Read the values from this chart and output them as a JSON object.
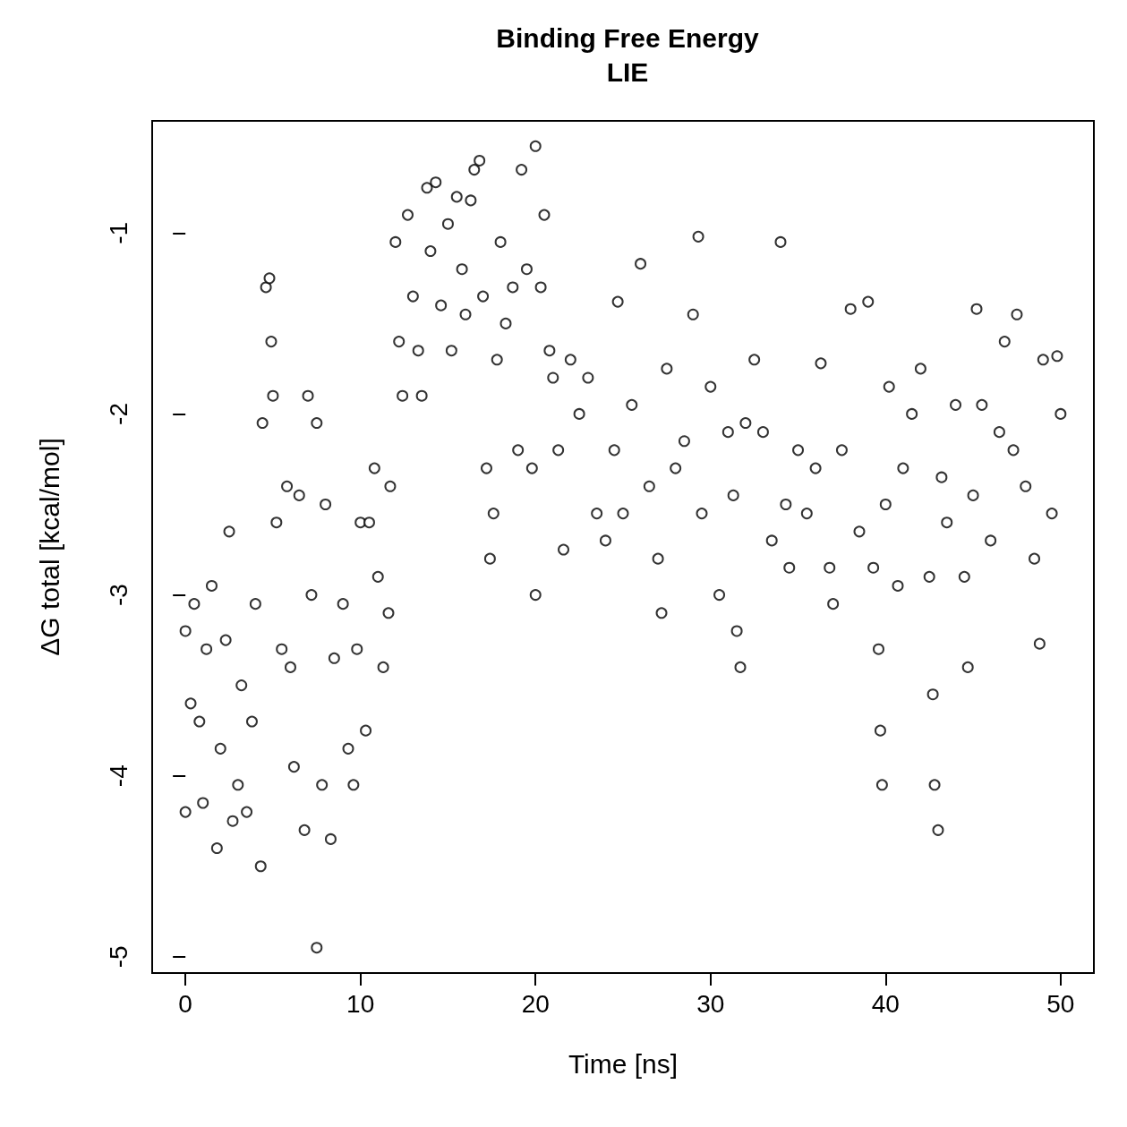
{
  "chart_data": {
    "type": "scatter",
    "title": "Binding Free Energy",
    "subtitle": "LIE",
    "xlabel": "Time [ns]",
    "ylabel": "ΔG total [kcal/mol]",
    "xlim": [
      -1.9,
      51.9
    ],
    "ylim": [
      -5.09,
      -0.38
    ],
    "xticks": [
      0,
      10,
      20,
      30,
      40,
      50
    ],
    "yticks": [
      -5,
      -4,
      -3,
      -2,
      -1
    ],
    "grid": false,
    "marker": "circle",
    "series": [
      {
        "color": "#000000",
        "x": [
          0,
          0,
          0.3,
          0.5,
          0.8,
          1,
          1.2,
          1.5,
          1.8,
          2,
          2.3,
          2.5,
          2.7,
          3,
          3.2,
          3.5,
          3.8,
          4,
          4.3,
          4.4,
          4.6,
          4.8,
          4.9,
          5,
          5.2,
          5.5,
          5.8,
          6,
          6.2,
          6.5,
          6.8,
          7,
          7.2,
          7.5,
          7.5,
          7.8,
          8,
          8.3,
          8.5,
          9,
          9.3,
          9.6,
          9.8,
          10,
          10.3,
          10.5,
          10.8,
          11,
          11.3,
          11.6,
          11.7,
          12,
          12.2,
          12.4,
          12.7,
          13,
          13.3,
          13.5,
          13.8,
          14,
          14.3,
          14.6,
          15,
          15.2,
          15.5,
          15.8,
          16,
          16.3,
          16.5,
          16.8,
          17,
          17.2,
          17.4,
          17.6,
          17.8,
          18,
          18.3,
          18.7,
          19,
          19.2,
          19.5,
          19.8,
          20,
          20,
          20.3,
          20.5,
          20.8,
          21,
          21.3,
          21.6,
          22,
          22.5,
          23,
          23.5,
          24,
          24.5,
          24.7,
          25,
          25.5,
          26,
          26.5,
          27,
          27.2,
          27.5,
          28,
          28.5,
          29,
          29.3,
          29.5,
          30,
          30.5,
          31,
          31.3,
          31.5,
          31.7,
          32,
          32.5,
          33,
          33.5,
          34,
          34.3,
          34.5,
          35,
          35.5,
          36,
          36.3,
          36.8,
          37,
          37.5,
          38,
          38.5,
          39,
          39.3,
          39.6,
          39.7,
          39.8,
          40,
          40.2,
          40.7,
          41,
          41.5,
          42,
          42.5,
          42.7,
          42.8,
          43,
          43.2,
          43.5,
          44,
          44.5,
          44.7,
          45,
          45.2,
          45.5,
          46,
          46.5,
          46.8,
          47.3,
          47.5,
          48,
          48.5,
          48.8,
          49,
          49.5,
          49.8,
          50
        ],
        "values": [
          -4.2,
          -3.2,
          -3.6,
          -3.05,
          -3.7,
          -4.15,
          -3.3,
          -2.95,
          -4.4,
          -3.85,
          -3.25,
          -2.65,
          -4.25,
          -4.05,
          -3.5,
          -4.2,
          -3.7,
          -3.05,
          -4.5,
          -2.05,
          -1.3,
          -1.25,
          -1.6,
          -1.9,
          -2.6,
          -3.3,
          -2.4,
          -3.4,
          -3.95,
          -2.45,
          -4.3,
          -1.9,
          -3.0,
          -4.95,
          -2.05,
          -4.05,
          -2.5,
          -4.35,
          -3.35,
          -3.05,
          -3.85,
          -4.05,
          -3.3,
          -2.6,
          -3.75,
          -2.6,
          -2.3,
          -2.9,
          -3.4,
          -3.1,
          -2.4,
          -1.05,
          -1.6,
          -1.9,
          -0.9,
          -1.35,
          -1.65,
          -1.9,
          -0.75,
          -1.1,
          -0.72,
          -1.4,
          -0.95,
          -1.65,
          -0.8,
          -1.2,
          -1.45,
          -0.82,
          -0.65,
          -0.6,
          -1.35,
          -2.3,
          -2.8,
          -2.55,
          -1.7,
          -1.05,
          -1.5,
          -1.3,
          -2.2,
          -0.65,
          -1.2,
          -2.3,
          -3.0,
          -0.52,
          -1.3,
          -0.9,
          -1.65,
          -1.8,
          -2.2,
          -2.75,
          -1.7,
          -2.0,
          -1.8,
          -2.55,
          -2.7,
          -2.2,
          -1.38,
          -2.55,
          -1.95,
          -1.17,
          -2.4,
          -2.8,
          -3.1,
          -1.75,
          -2.3,
          -2.15,
          -1.45,
          -1.02,
          -2.55,
          -1.85,
          -3.0,
          -2.1,
          -2.45,
          -3.2,
          -3.4,
          -2.05,
          -1.7,
          -2.1,
          -2.7,
          -1.05,
          -2.5,
          -2.85,
          -2.2,
          -2.55,
          -2.3,
          -1.72,
          -2.85,
          -3.05,
          -2.2,
          -1.42,
          -2.65,
          -1.38,
          -2.85,
          -3.3,
          -3.75,
          -4.05,
          -2.5,
          -1.85,
          -2.95,
          -2.3,
          -2.0,
          -1.75,
          -2.9,
          -3.55,
          -4.05,
          -4.3,
          -2.35,
          -2.6,
          -1.95,
          -2.9,
          -3.4,
          -2.45,
          -1.42,
          -1.95,
          -2.7,
          -2.1,
          -1.6,
          -2.2,
          -1.45,
          -2.4,
          -2.8,
          -3.27,
          -1.7,
          -2.55,
          -1.68,
          -2.0
        ]
      }
    ]
  }
}
